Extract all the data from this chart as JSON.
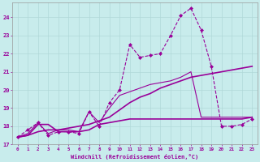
{
  "background_color": "#c8ecec",
  "grid_color": "#b0d8d8",
  "line_color": "#990099",
  "xlabel": "Windchill (Refroidissement éolien,°C)",
  "xlim": [
    -0.5,
    23.5
  ],
  "ylim": [
    17.0,
    24.8
  ],
  "yticks": [
    17,
    18,
    19,
    20,
    21,
    22,
    23,
    24
  ],
  "xticks": [
    0,
    1,
    2,
    3,
    4,
    5,
    6,
    7,
    8,
    9,
    10,
    11,
    12,
    13,
    14,
    15,
    16,
    17,
    18,
    19,
    20,
    21,
    22,
    23
  ],
  "series": [
    {
      "x": [
        0,
        1,
        2,
        3,
        4,
        5,
        6,
        7,
        8,
        9,
        10,
        11,
        12,
        13,
        14,
        15,
        16,
        17,
        18,
        19,
        20,
        21,
        22,
        23
      ],
      "y": [
        17.4,
        17.8,
        18.2,
        17.5,
        17.7,
        17.7,
        17.6,
        18.8,
        18.0,
        19.3,
        20.0,
        22.5,
        21.8,
        21.9,
        22.0,
        23.0,
        24.1,
        24.5,
        23.3,
        21.3,
        18.0,
        18.0,
        18.1,
        18.4
      ],
      "marker": "D",
      "markersize": 2.0,
      "linewidth": 0.8,
      "linestyle": "--"
    },
    {
      "x": [
        0,
        1,
        2,
        3,
        4,
        5,
        6,
        7,
        8,
        9,
        10,
        11,
        12,
        13,
        14,
        15,
        16,
        17,
        18,
        19,
        20,
        21,
        22,
        23
      ],
      "y": [
        17.4,
        17.5,
        18.1,
        18.1,
        17.7,
        17.7,
        17.7,
        17.8,
        18.1,
        18.2,
        18.3,
        18.4,
        18.4,
        18.4,
        18.4,
        18.4,
        18.4,
        18.4,
        18.4,
        18.4,
        18.4,
        18.4,
        18.4,
        18.5
      ],
      "marker": null,
      "markersize": 0,
      "linewidth": 1.2,
      "linestyle": "-"
    },
    {
      "x": [
        0,
        1,
        2,
        3,
        4,
        5,
        6,
        7,
        8,
        9,
        10,
        11,
        12,
        13,
        14,
        15,
        16,
        17,
        18,
        19,
        20,
        21,
        22,
        23
      ],
      "y": [
        17.4,
        17.5,
        17.7,
        17.8,
        17.8,
        17.9,
        18.0,
        18.1,
        18.3,
        18.5,
        18.9,
        19.3,
        19.6,
        19.8,
        20.1,
        20.3,
        20.5,
        20.7,
        20.8,
        20.9,
        21.0,
        21.1,
        21.2,
        21.3
      ],
      "marker": null,
      "markersize": 0,
      "linewidth": 1.2,
      "linestyle": "-"
    },
    {
      "x": [
        0,
        1,
        2,
        3,
        4,
        5,
        6,
        7,
        8,
        9,
        10,
        11,
        12,
        13,
        14,
        15,
        16,
        17,
        18,
        19,
        20,
        21,
        22,
        23
      ],
      "y": [
        17.4,
        17.6,
        18.2,
        17.6,
        17.8,
        17.8,
        17.7,
        18.8,
        18.2,
        19.0,
        19.7,
        19.9,
        20.1,
        20.3,
        20.4,
        20.5,
        20.7,
        21.0,
        18.5,
        18.5,
        18.5,
        18.5,
        18.5,
        18.5
      ],
      "marker": null,
      "markersize": 0,
      "linewidth": 0.8,
      "linestyle": "-"
    }
  ]
}
